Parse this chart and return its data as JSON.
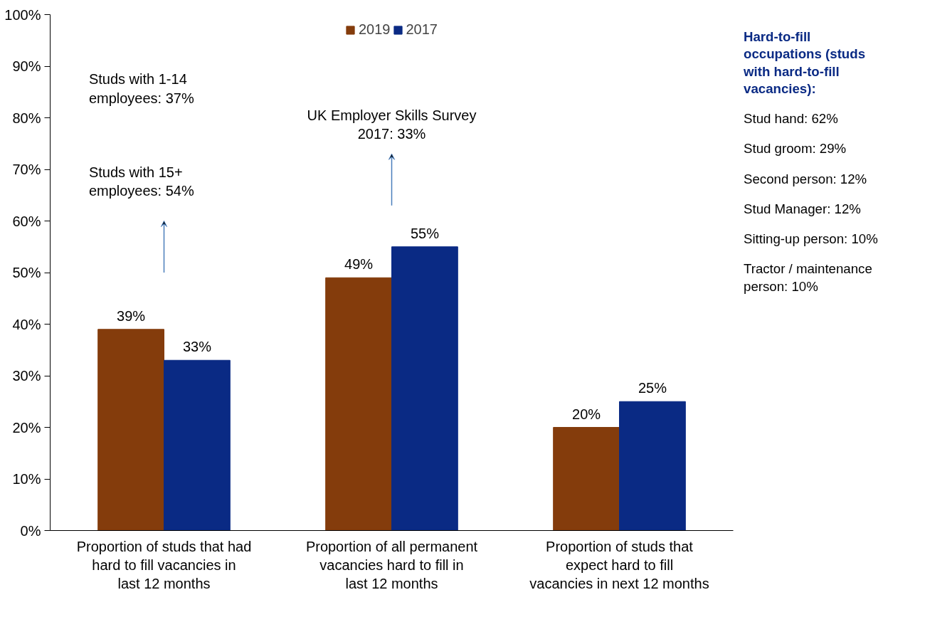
{
  "chart_data": {
    "type": "bar",
    "categories": [
      "Proportion of studs that had hard to fill vacancies in last 12 months",
      "Proportion of all permanent vacancies hard to fill in last 12 months",
      "Proportion of studs that expect hard to fill vacancies in next 12 months"
    ],
    "series": [
      {
        "name": "2019",
        "color": "#843c0c",
        "values": [
          39,
          49,
          20
        ],
        "value_labels": [
          "39%",
          "49%",
          "20%"
        ]
      },
      {
        "name": "2017",
        "color": "#0a2a84",
        "values": [
          33,
          55,
          25
        ],
        "value_labels": [
          "33%",
          "55%",
          "25%"
        ]
      }
    ],
    "ylim": [
      0,
      100
    ],
    "yticks": [
      {
        "value": 0,
        "label": "0%"
      },
      {
        "value": 10,
        "label": "10%"
      },
      {
        "value": 20,
        "label": "20%"
      },
      {
        "value": 30,
        "label": "30%"
      },
      {
        "value": 40,
        "label": "40%"
      },
      {
        "value": 50,
        "label": "50%"
      },
      {
        "value": 60,
        "label": "60%"
      },
      {
        "value": 70,
        "label": "70%"
      },
      {
        "value": 80,
        "label": "80%"
      },
      {
        "value": 90,
        "label": "90%"
      },
      {
        "value": 100,
        "label": "100%"
      }
    ],
    "grid": false,
    "legend": "top",
    "annotations": [
      "Studs with 1-14 employees: 37%",
      "Studs with 15+ employees: 54%",
      "UK Employer Skills Survey 2017: 33%",
      "Hard-to-fill occupations (studs with hard-to-fill vacancies):",
      "Stud hand: 62%",
      "Stud groom: 29%",
      "Second person: 12%",
      "Stud Manager: 12%",
      "Sitting-up person: 10%",
      "Tractor / maintenance person: 10%"
    ]
  }
}
